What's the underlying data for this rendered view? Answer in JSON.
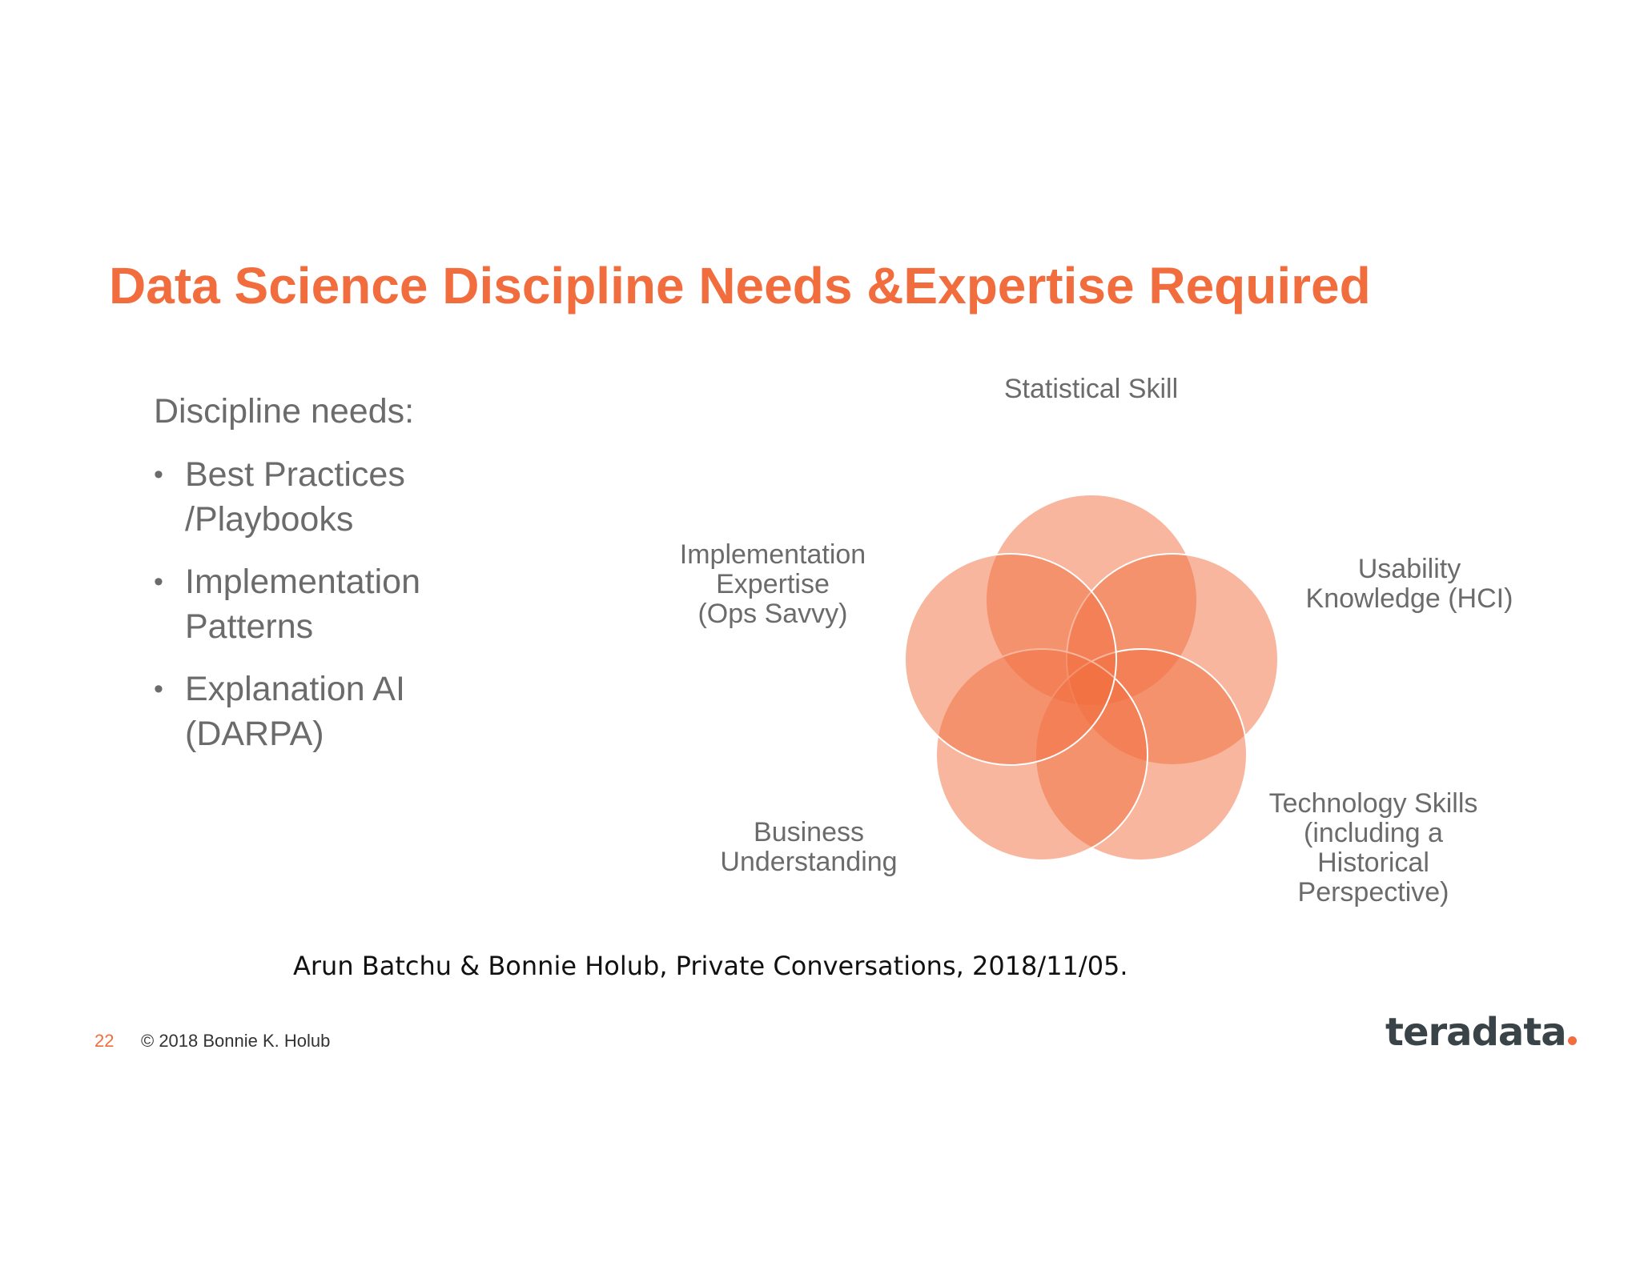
{
  "slide": {
    "title": "Data Science Discipline Needs &Expertise Required",
    "accent_color": "#f26d3d",
    "text_color": "#6b6b6b"
  },
  "needs": {
    "heading": "Discipline needs:",
    "bullet_glyph": "•",
    "items": [
      {
        "line1": "Best Practices",
        "line2": "/Playbooks"
      },
      {
        "line1": "Implementation",
        "line2": "Patterns"
      },
      {
        "line1": "Explanation AI",
        "line2": "(DARPA)"
      }
    ]
  },
  "diagram": {
    "circle_color": "#f26d3d",
    "labels": {
      "statistical": {
        "line1": "Statistical Skill"
      },
      "usability": {
        "line1": "Usability",
        "line2": "Knowledge (HCI)"
      },
      "technology": {
        "line1": "Technology Skills",
        "line2": "(including a",
        "line3": "Historical",
        "line4": "Perspective)"
      },
      "business": {
        "line1": "Business",
        "line2": "Understanding"
      },
      "implementation": {
        "line1": "Implementation",
        "line2": "Expertise",
        "line3": "(Ops Savvy)"
      }
    }
  },
  "citation": "Arun Batchu & Bonnie Holub, Private Conversations, 2018/11/05.",
  "footer": {
    "page_number": "22",
    "copyright": "© 2018 Bonnie K. Holub",
    "logo_text": "teradata"
  }
}
